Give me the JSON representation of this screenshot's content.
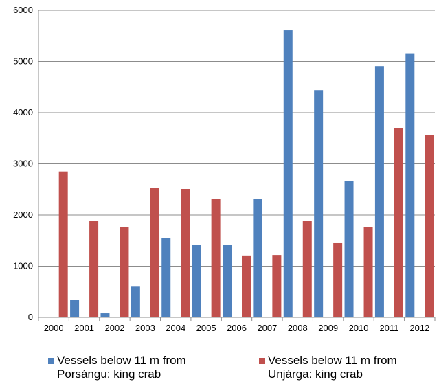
{
  "chart_data": {
    "type": "bar",
    "categories": [
      "2000",
      "2001",
      "2002",
      "2003",
      "2004",
      "2005",
      "2006",
      "2007",
      "2008",
      "2009",
      "2010",
      "2011",
      "2012"
    ],
    "series": [
      {
        "name": "Vessels below 11 m from Porsángu: king crab",
        "name_lines": [
          "Vessels below 11 m from",
          "Porsángu: king crab"
        ],
        "color": "#4f81bd",
        "values": [
          0,
          340,
          80,
          600,
          1550,
          1410,
          1410,
          2310,
          5610,
          4440,
          2670,
          4910,
          5160
        ]
      },
      {
        "name": "Vessels below 11 m from Unjárga: king crab",
        "name_lines": [
          "Vessels below 11 m from",
          "Unjárga: king crab"
        ],
        "color": "#c0504d",
        "values": [
          2850,
          1880,
          1770,
          2530,
          2510,
          2310,
          1210,
          1220,
          1890,
          1450,
          1770,
          3700,
          3570
        ]
      }
    ],
    "ylim": [
      0,
      6000
    ],
    "yticks": [
      "0",
      "1000",
      "2000",
      "3000",
      "4000",
      "5000",
      "6000"
    ],
    "grid": true,
    "legend_position": "bottom"
  }
}
